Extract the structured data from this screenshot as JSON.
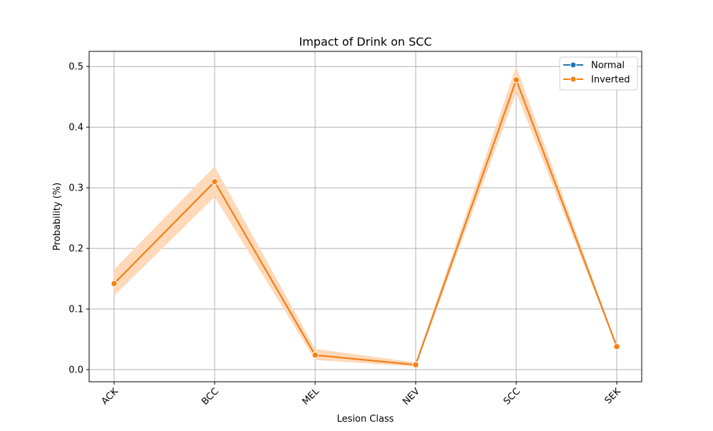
{
  "chart_data": {
    "type": "line",
    "title": "Impact of Drink on SCC",
    "xlabel": "Lesion Class",
    "ylabel": "Probability (%)",
    "categories": [
      "ACK",
      "BCC",
      "MEL",
      "NEV",
      "SCC",
      "SEK"
    ],
    "ylim": [
      -0.02,
      0.525
    ],
    "yticks": [
      0.0,
      0.1,
      0.2,
      0.3,
      0.4,
      0.5
    ],
    "ytick_labels": [
      "0.0",
      "0.1",
      "0.2",
      "0.3",
      "0.4",
      "0.5"
    ],
    "grid": true,
    "legend_position": "top-right",
    "series": [
      {
        "name": "Normal",
        "color": "#1f77b4",
        "values": [
          0.142,
          0.31,
          0.024,
          0.008,
          0.478,
          0.038
        ],
        "ci_lower": [
          0.122,
          0.285,
          0.016,
          0.005,
          0.457,
          0.036
        ],
        "ci_upper": [
          0.165,
          0.335,
          0.034,
          0.012,
          0.5,
          0.04
        ]
      },
      {
        "name": "Inverted",
        "color": "#ff7f0e",
        "band_color": "#ffd9b8",
        "values": [
          0.142,
          0.31,
          0.024,
          0.008,
          0.478,
          0.038
        ],
        "ci_lower": [
          0.122,
          0.285,
          0.016,
          0.005,
          0.457,
          0.036
        ],
        "ci_upper": [
          0.165,
          0.335,
          0.034,
          0.012,
          0.5,
          0.04
        ]
      }
    ]
  }
}
